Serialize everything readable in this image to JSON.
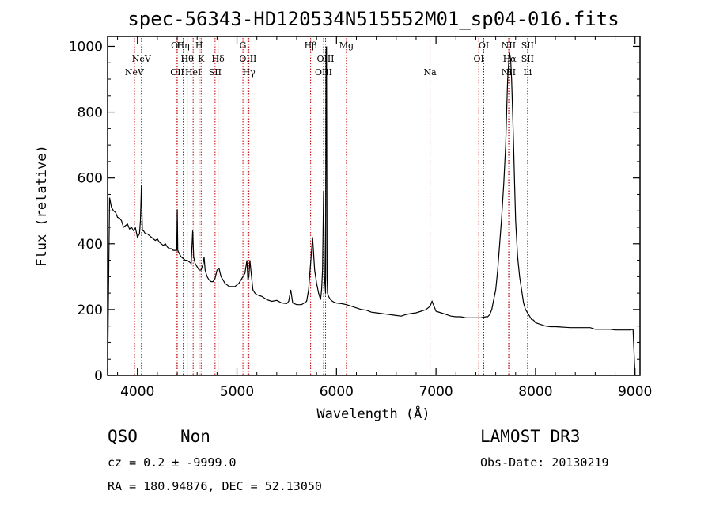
{
  "chart_data": {
    "type": "line",
    "title": "spec-56343-HD120534N515552M01_sp04-016.fits",
    "xlabel": "Wavelength (Å)",
    "ylabel": "Flux (relative)",
    "xlim": [
      3700,
      9050
    ],
    "ylim": [
      0,
      1030
    ],
    "xticks": [
      4000,
      5000,
      6000,
      7000,
      8000,
      9000
    ],
    "yticks": [
      0,
      200,
      400,
      600,
      800,
      1000
    ],
    "series": [
      {
        "name": "spectrum",
        "x": [
          3700,
          3720,
          3740,
          3760,
          3780,
          3800,
          3820,
          3840,
          3860,
          3880,
          3900,
          3920,
          3940,
          3960,
          3980,
          4000,
          4020,
          4030,
          4040,
          4045,
          4050,
          4060,
          4080,
          4100,
          4120,
          4140,
          4160,
          4180,
          4200,
          4220,
          4240,
          4260,
          4280,
          4300,
          4320,
          4340,
          4360,
          4380,
          4395,
          4400,
          4405,
          4420,
          4440,
          4460,
          4480,
          4500,
          4520,
          4540,
          4555,
          4565,
          4580,
          4600,
          4620,
          4640,
          4660,
          4670,
          4680,
          4700,
          4720,
          4740,
          4760,
          4780,
          4800,
          4820,
          4840,
          4860,
          4880,
          4900,
          4920,
          4940,
          4960,
          4980,
          5000,
          5020,
          5040,
          5060,
          5080,
          5100,
          5110,
          5120,
          5130,
          5140,
          5160,
          5180,
          5200,
          5250,
          5300,
          5350,
          5400,
          5450,
          5500,
          5520,
          5540,
          5560,
          5600,
          5650,
          5700,
          5720,
          5740,
          5760,
          5780,
          5800,
          5820,
          5840,
          5850,
          5860,
          5870,
          5880,
          5890,
          5895,
          5900,
          5905,
          5910,
          5920,
          5940,
          5960,
          5980,
          6000,
          6050,
          6100,
          6150,
          6200,
          6250,
          6300,
          6350,
          6400,
          6450,
          6500,
          6550,
          6600,
          6650,
          6700,
          6750,
          6800,
          6850,
          6900,
          6920,
          6940,
          6960,
          6980,
          7000,
          7050,
          7100,
          7150,
          7200,
          7250,
          7300,
          7350,
          7400,
          7450,
          7500,
          7520,
          7540,
          7560,
          7580,
          7600,
          7620,
          7640,
          7660,
          7680,
          7700,
          7710,
          7720,
          7730,
          7740,
          7750,
          7760,
          7770,
          7780,
          7790,
          7800,
          7820,
          7840,
          7860,
          7880,
          7900,
          7910,
          7920,
          7940,
          7960,
          7980,
          8000,
          8050,
          8100,
          8150,
          8200,
          8250,
          8300,
          8350,
          8400,
          8450,
          8500,
          8550,
          8600,
          8650,
          8700,
          8750,
          8800,
          8850,
          8900,
          8950,
          8980,
          9000
        ],
        "values": [
          10,
          540,
          510,
          500,
          495,
          480,
          478,
          470,
          450,
          455,
          460,
          445,
          450,
          440,
          448,
          420,
          430,
          470,
          580,
          500,
          440,
          440,
          430,
          430,
          425,
          420,
          415,
          410,
          415,
          405,
          400,
          395,
          400,
          390,
          385,
          385,
          380,
          380,
          380,
          505,
          380,
          370,
          360,
          355,
          350,
          350,
          345,
          340,
          440,
          360,
          340,
          330,
          320,
          320,
          340,
          360,
          320,
          300,
          290,
          285,
          285,
          295,
          320,
          325,
          300,
          290,
          280,
          275,
          270,
          270,
          270,
          270,
          275,
          280,
          290,
          300,
          310,
          350,
          290,
          300,
          350,
          320,
          260,
          250,
          245,
          240,
          230,
          225,
          228,
          220,
          218,
          225,
          260,
          220,
          215,
          215,
          225,
          260,
          340,
          420,
          320,
          280,
          250,
          230,
          260,
          320,
          560,
          300,
          250,
          980,
          1000,
          300,
          250,
          240,
          230,
          225,
          222,
          220,
          218,
          215,
          210,
          205,
          200,
          198,
          192,
          190,
          188,
          186,
          184,
          182,
          180,
          185,
          188,
          190,
          195,
          200,
          205,
          210,
          225,
          210,
          195,
          190,
          185,
          180,
          178,
          178,
          175,
          175,
          175,
          175,
          178,
          178,
          185,
          200,
          230,
          260,
          320,
          400,
          480,
          580,
          700,
          800,
          900,
          950,
          980,
          960,
          900,
          800,
          700,
          580,
          470,
          360,
          300,
          260,
          220,
          200,
          195,
          190,
          180,
          170,
          168,
          160,
          155,
          150,
          148,
          148,
          147,
          146,
          145,
          145,
          145,
          145,
          145,
          140,
          140,
          140,
          140,
          138,
          138,
          138,
          138,
          140,
          0
        ]
      }
    ],
    "lines": [
      {
        "label": "NeV",
        "wave": 3970,
        "row": 3
      },
      {
        "label": "NeV",
        "wave": 4040,
        "row": 2
      },
      {
        "label": "OI",
        "wave": 4390,
        "row": 1
      },
      {
        "label": "OII",
        "wave": 4400,
        "row": 3
      },
      {
        "label": "Hη",
        "wave": 4460,
        "row": 1
      },
      {
        "label": "Hθ",
        "wave": 4500,
        "row": 2
      },
      {
        "label": "HeI",
        "wave": 4560,
        "row": 3
      },
      {
        "label": "H",
        "wave": 4620,
        "row": 1
      },
      {
        "label": "K",
        "wave": 4640,
        "row": 2
      },
      {
        "label": "SII",
        "wave": 4780,
        "row": 3
      },
      {
        "label": "Hδ",
        "wave": 4810,
        "row": 2
      },
      {
        "label": "G",
        "wave": 5060,
        "row": 1
      },
      {
        "label": "OIII",
        "wave": 5110,
        "row": 2
      },
      {
        "label": "Hγ",
        "wave": 5120,
        "row": 3
      },
      {
        "label": "Hβ",
        "wave": 5740,
        "row": 1
      },
      {
        "label": "OIII",
        "wave": 5890,
        "row": 2
      },
      {
        "label": "OIII",
        "wave": 5870,
        "row": 3
      },
      {
        "label": "Mg",
        "wave": 6100,
        "row": 1
      },
      {
        "label": "Na",
        "wave": 6940,
        "row": 3
      },
      {
        "label": "OI",
        "wave": 7480,
        "row": 1
      },
      {
        "label": "OI",
        "wave": 7430,
        "row": 2
      },
      {
        "label": "NII",
        "wave": 7730,
        "row": 1
      },
      {
        "label": "Hα",
        "wave": 7740,
        "row": 2
      },
      {
        "label": "NII",
        "wave": 7730,
        "row": 3
      },
      {
        "label": "SII",
        "wave": 7920,
        "row": 1
      },
      {
        "label": "SII",
        "wave": 7920,
        "row": 2
      },
      {
        "label": "Li",
        "wave": 7920,
        "row": 3
      }
    ],
    "line_color": "#c00000"
  },
  "footer": {
    "class_label": "QSO",
    "subclass_label": "Non",
    "survey": "LAMOST DR3",
    "cz": "cz = 0.2 ± -9999.0",
    "obs_date": "Obs-Date: 20130219",
    "coords": "RA = 180.94876, DEC =  52.13050"
  }
}
